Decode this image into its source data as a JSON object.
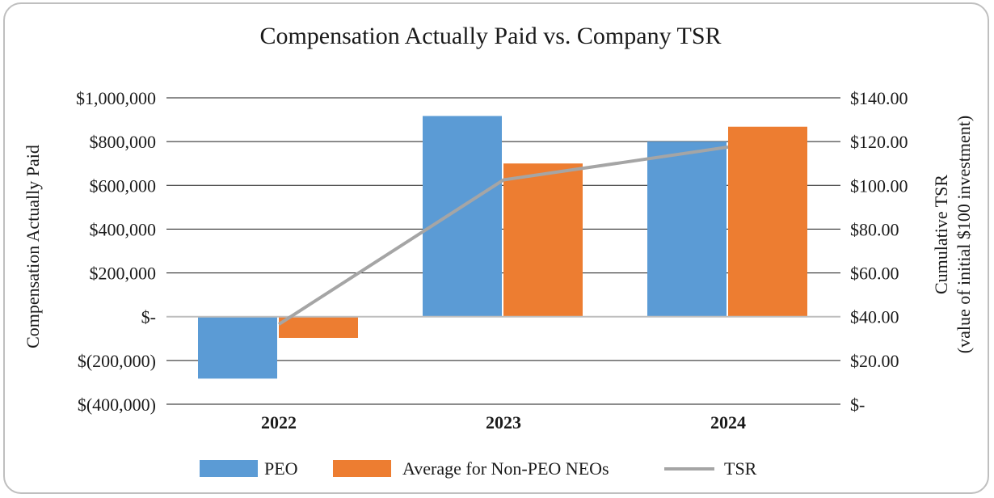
{
  "chart_data": {
    "type": "bar",
    "title": "Compensation Actually Paid vs. Company TSR",
    "categories": [
      "2022",
      "2023",
      "2024"
    ],
    "series": [
      {
        "name": "PEO",
        "type": "bar",
        "axis": "left",
        "color": "#5b9bd5",
        "values": [
          -283000,
          917000,
          800000
        ]
      },
      {
        "name": "Average for Non-PEO NEOs",
        "type": "bar",
        "axis": "left",
        "color": "#ed7d31",
        "values": [
          -97000,
          700000,
          868000
        ]
      },
      {
        "name": "TSR",
        "type": "line",
        "axis": "right",
        "color": "#a5a5a5",
        "values": [
          36.5,
          102.5,
          117.5
        ]
      }
    ],
    "ylabel": "Compensation Actually Paid",
    "ylabel2": [
      "Cumulative TSR",
      "(value of initial $100 investment)"
    ],
    "ylim": [
      -400000,
      1000000
    ],
    "ylim2": [
      0,
      140
    ],
    "yticks": [
      "$1,000,000",
      "$800,000",
      "$600,000",
      "$400,000",
      "$200,000",
      "$-",
      "$(200,000)",
      "$(400,000)"
    ],
    "yticks2": [
      "$140.00",
      "$120.00",
      "$100.00",
      "$80.00",
      "$60.00",
      "$40.00",
      "$20.00",
      "$-"
    ],
    "grid": true,
    "legend_position": "bottom"
  }
}
